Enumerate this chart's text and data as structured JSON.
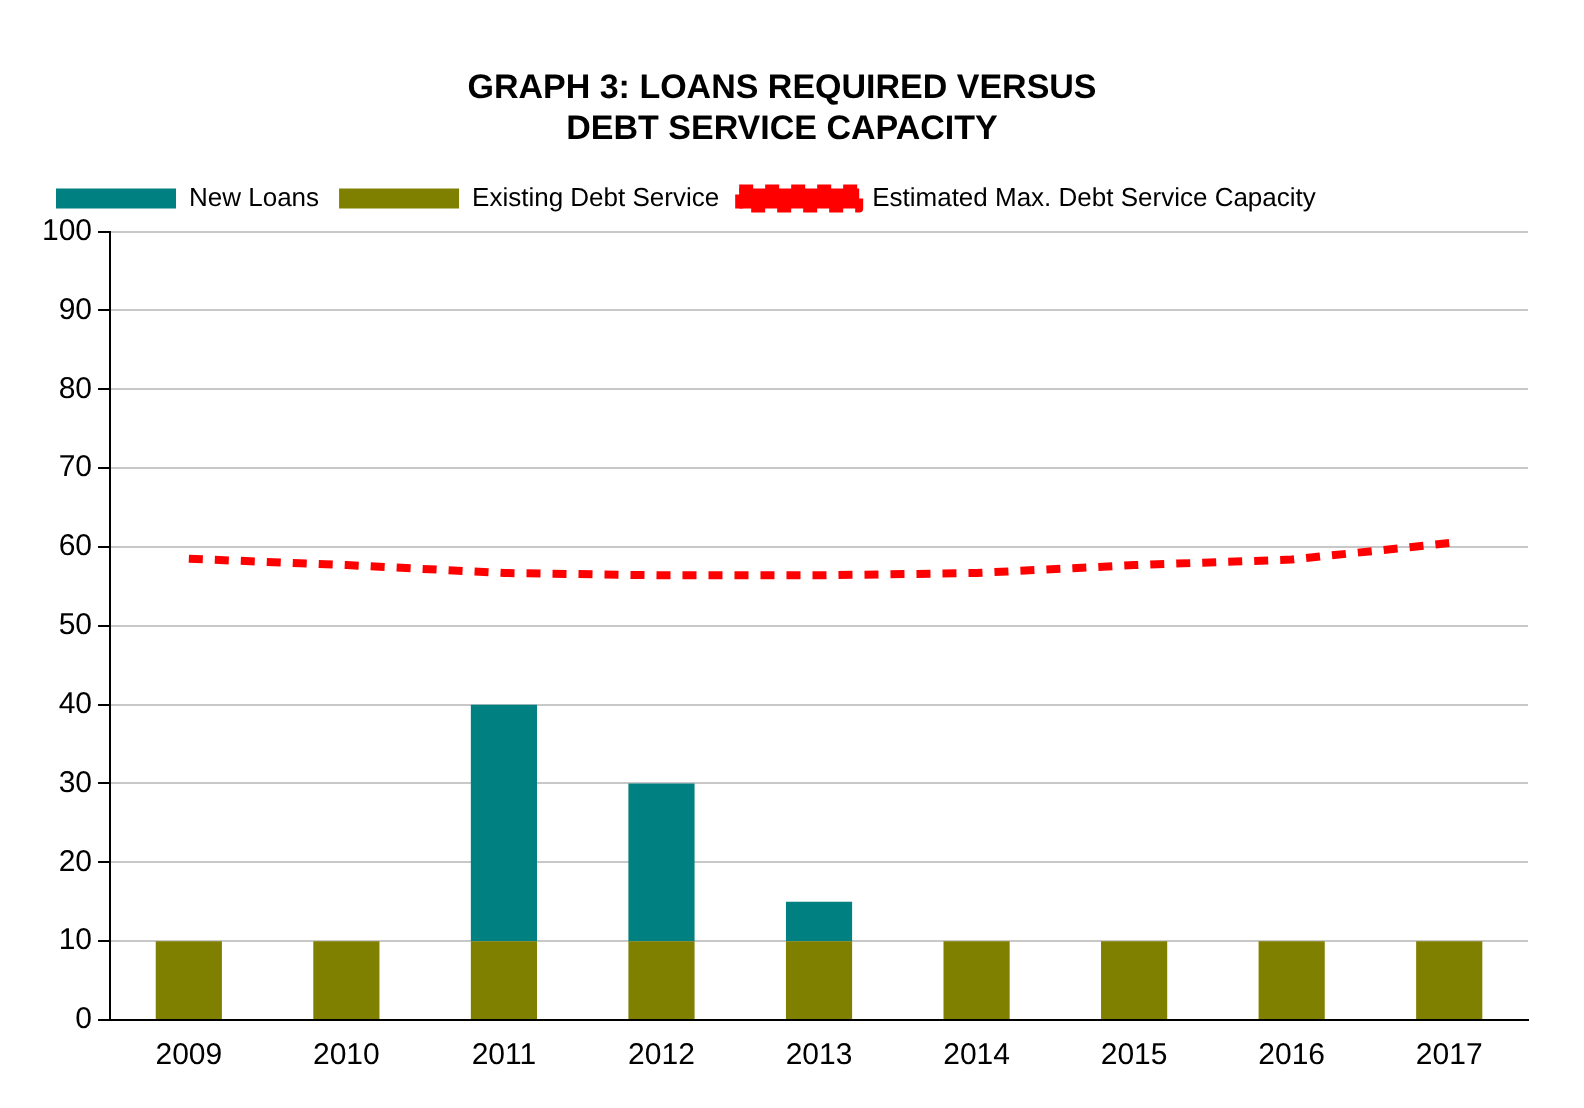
{
  "chart_data": {
    "type": "bar",
    "title": "GRAPH 3: LOANS REQUIRED VERSUS DEBT SERVICE CAPACITY",
    "categories": [
      "2009",
      "2010",
      "2011",
      "2012",
      "2013",
      "2014",
      "2015",
      "2016",
      "2017"
    ],
    "stacked": true,
    "series": [
      {
        "name": "Existing Debt Service",
        "color": "#808000",
        "values": [
          10,
          10,
          10,
          10,
          10,
          10,
          10,
          10,
          10
        ]
      },
      {
        "name": "New Loans",
        "color": "#008080",
        "values": [
          0,
          0,
          30,
          20,
          5,
          0,
          0,
          0,
          0
        ]
      },
      {
        "name": "Estimated Max. Debt Service Capacity",
        "type": "line",
        "color": "#ff0000",
        "line_style": "dashed",
        "marker": "none",
        "values": [
          58.5,
          57.7,
          56.7,
          56.4,
          56.4,
          56.7,
          57.7,
          58.4,
          60.5
        ]
      }
    ],
    "ylim": [
      0,
      100
    ],
    "yticks": [
      0,
      10,
      20,
      30,
      40,
      50,
      60,
      70,
      80,
      90,
      100
    ],
    "grid": "y",
    "legend": "top left"
  }
}
